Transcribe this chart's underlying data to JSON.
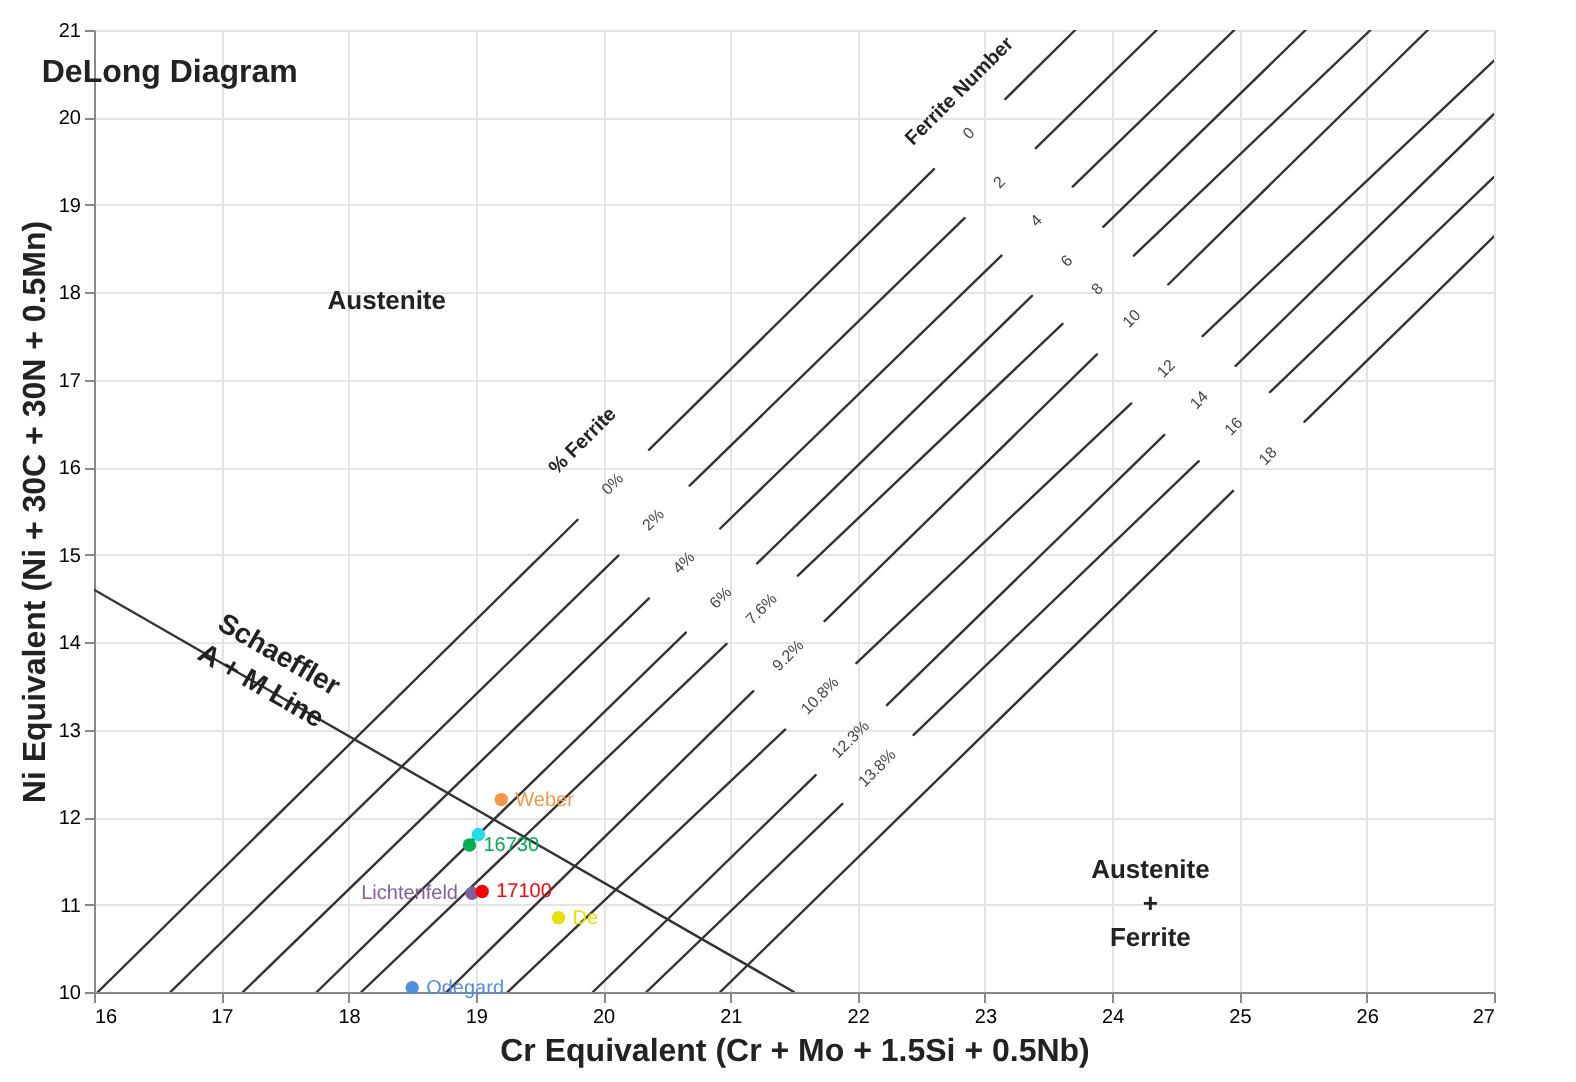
{
  "chart_data": {
    "type": "scatter",
    "title": "DeLong Diagram",
    "xlabel": "Cr Equivalent (Cr + Mo + 1.5Si + 0.5Nb)",
    "ylabel": "Ni Equivalent (Ni + 30C + 30N + 0.5Mn)",
    "xlim": [
      16,
      27
    ],
    "ylim": [
      10,
      21
    ],
    "xticks": [
      16,
      17,
      18,
      19,
      20,
      21,
      22,
      23,
      24,
      25,
      26,
      27
    ],
    "yticks": [
      10,
      11,
      12,
      13,
      14,
      15,
      16,
      17,
      18,
      19,
      20,
      21
    ],
    "grid": true,
    "marker": "circle",
    "series": [
      {
        "type": "line",
        "marker": "none",
        "color": "#333333",
        "x": [
          16,
          21.5
        ],
        "values": [
          14.6,
          10
        ]
      },
      {
        "type": "line",
        "marker": "none",
        "color": "#333333",
        "x": [
          16.03,
          19.8,
          20.08,
          20.36,
          22.6,
          22.88,
          23.16,
          23.71
        ],
        "values": [
          10,
          15.4,
          null,
          16.2,
          19.41,
          null,
          20.21,
          21
        ]
      },
      {
        "type": "line",
        "marker": "none",
        "color": "#333333",
        "x": [
          16.6,
          20.12,
          20.4,
          20.68,
          22.84,
          23.12,
          23.4,
          24.35
        ],
        "values": [
          10,
          14.99,
          null,
          15.79,
          18.85,
          null,
          19.65,
          21
        ]
      },
      {
        "type": "line",
        "marker": "none",
        "color": "#333333",
        "x": [
          17.17,
          20.36,
          20.64,
          20.92,
          23.13,
          23.41,
          23.69,
          24.96
        ],
        "values": [
          10,
          14.5,
          null,
          15.3,
          18.42,
          null,
          19.21,
          21
        ]
      },
      {
        "type": "line",
        "marker": "none",
        "color": "#333333",
        "x": [
          17.75,
          20.65,
          20.93,
          21.21,
          23.37,
          23.65,
          23.93,
          25.52
        ],
        "values": [
          10,
          14.11,
          null,
          14.9,
          17.96,
          null,
          18.75,
          21
        ]
      },
      {
        "type": "line",
        "marker": "none",
        "color": "#333333",
        "x": [
          18.1,
          20.97,
          21.25,
          21.53,
          23.61,
          23.89,
          24.17,
          26.03
        ],
        "values": [
          10,
          13.98,
          null,
          14.76,
          17.64,
          null,
          18.42,
          21
        ]
      },
      {
        "type": "line",
        "marker": "none",
        "color": "#333333",
        "x": [
          18.77,
          21.18,
          21.46,
          21.74,
          23.88,
          24.16,
          24.44,
          26.48
        ],
        "values": [
          10,
          13.44,
          null,
          14.24,
          17.29,
          null,
          18.09,
          21
        ]
      },
      {
        "type": "line",
        "marker": "none",
        "color": "#333333",
        "x": [
          19.25,
          21.43,
          21.71,
          21.99,
          24.15,
          24.43,
          24.71,
          27
        ],
        "values": [
          10,
          13.0,
          null,
          13.76,
          16.73,
          null,
          17.5,
          20.65
        ]
      },
      {
        "type": "line",
        "marker": "none",
        "color": "#333333",
        "x": [
          19.92,
          21.67,
          21.95,
          22.23,
          24.41,
          24.69,
          24.97,
          27
        ],
        "values": [
          10,
          12.48,
          null,
          13.28,
          16.37,
          null,
          17.16,
          20.04
        ]
      },
      {
        "type": "line",
        "marker": "none",
        "color": "#333333",
        "x": [
          20.34,
          21.88,
          22.16,
          22.44,
          24.68,
          24.96,
          25.24,
          27
        ],
        "values": [
          10,
          12.15,
          null,
          12.94,
          16.07,
          null,
          16.86,
          19.32
        ]
      },
      {
        "type": "line",
        "marker": "none",
        "color": "#333333",
        "x": [
          20.92,
          24.95,
          25.23,
          25.51,
          27
        ],
        "values": [
          10,
          15.73,
          null,
          16.52,
          18.64
        ]
      },
      {
        "name": "Weber",
        "color": "#f79646",
        "x": [
          19.2
        ],
        "values": [
          12.2
        ]
      },
      {
        "color": "#22dde8",
        "x": [
          19.02
        ],
        "values": [
          11.8
        ]
      },
      {
        "name": "16730",
        "color": "#00b050",
        "x": [
          18.95
        ],
        "values": [
          11.68
        ]
      },
      {
        "name": "Lichtenfeld",
        "color": "#7f5fa0",
        "x": [
          18.97
        ],
        "values": [
          11.13
        ]
      },
      {
        "name": "17100",
        "color": "#ff0000",
        "x": [
          19.05
        ],
        "values": [
          11.15
        ]
      },
      {
        "name": "De",
        "color": "#e8e000",
        "x": [
          19.65
        ],
        "values": [
          10.85
        ]
      },
      {
        "name": "Odegard",
        "color": "#4f8fdd",
        "x": [
          18.5
        ],
        "values": [
          10.05
        ]
      }
    ],
    "annotations": [
      "Austenite",
      "Austenite\n+\nFerrite",
      "Schaeffler\nA + M Line",
      "% Ferrite",
      "Ferrite Number",
      "0%",
      "2%",
      "4%",
      "6%",
      "7.6%",
      "9.2%",
      "10.8%",
      "12.3%",
      "13.8%",
      "0",
      "2",
      "4",
      "6",
      "8",
      "10",
      "12",
      "14",
      "16",
      "18"
    ]
  }
}
